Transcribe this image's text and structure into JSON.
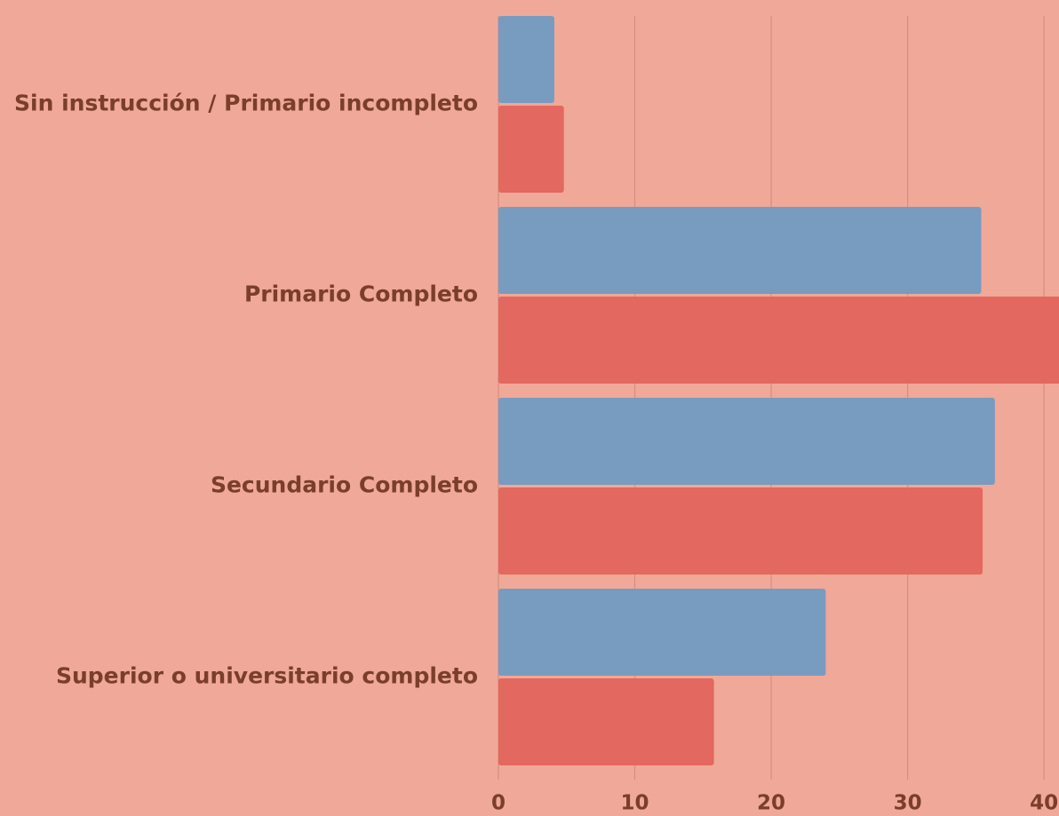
{
  "chart_data": {
    "type": "bar",
    "orientation": "horizontal",
    "categories": [
      "Sin instrucción / Primario incompleto",
      "Primario Completo",
      "Secundario Completo",
      "Superior o universitario completo"
    ],
    "series": [
      {
        "color": "#789bc0",
        "values": [
          4.1,
          35.4,
          36.4,
          24.0
        ]
      },
      {
        "color": "#e3685f",
        "values": [
          4.8,
          42,
          35.5,
          15.8
        ]
      }
    ],
    "xlim": [
      0,
      41.1
    ],
    "xticks": [
      0,
      10,
      20,
      30,
      40
    ],
    "grid": true
  }
}
